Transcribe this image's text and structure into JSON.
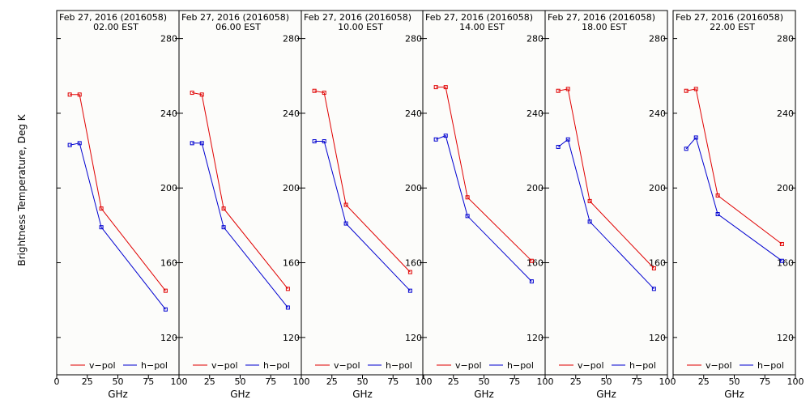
{
  "chart_data": {
    "type": "line",
    "ylabel": "Brightness Temperature, Deg K",
    "xlabel": "GHz",
    "xlim": [
      0,
      100
    ],
    "ylim": [
      100,
      295
    ],
    "x_ticks": [
      "0",
      "25",
      "50",
      "75",
      "100"
    ],
    "y_ticks": [
      "120",
      "160",
      "200",
      "240",
      "280"
    ],
    "grid": false,
    "legend_placement": "bottom",
    "colors": {
      "v-pol": "#e00000",
      "h-pol": "#0000d0"
    },
    "legend": [
      "v−pol",
      "h−pol"
    ],
    "panels": [
      {
        "title_line1": "Feb 27, 2016 (2016058)",
        "title_line2": "02.00 EST",
        "series": [
          {
            "name": "v−pol",
            "x": [
              10.7,
              18.7,
              36.5,
              89.0
            ],
            "y": [
              250,
              250,
              189,
              145
            ]
          },
          {
            "name": "h−pol",
            "x": [
              10.7,
              18.7,
              36.5,
              89.0
            ],
            "y": [
              223,
              224,
              179,
              135
            ]
          }
        ]
      },
      {
        "title_line1": "Feb 27, 2016 (2016058)",
        "title_line2": "06.00 EST",
        "series": [
          {
            "name": "v−pol",
            "x": [
              10.7,
              18.7,
              36.5,
              89.0
            ],
            "y": [
              251,
              250,
              189,
              146
            ]
          },
          {
            "name": "h−pol",
            "x": [
              10.7,
              18.7,
              36.5,
              89.0
            ],
            "y": [
              224,
              224,
              179,
              136
            ]
          }
        ]
      },
      {
        "title_line1": "Feb 27, 2016 (2016058)",
        "title_line2": "10.00 EST",
        "series": [
          {
            "name": "v−pol",
            "x": [
              10.7,
              18.7,
              36.5,
              89.0
            ],
            "y": [
              252,
              251,
              191,
              155
            ]
          },
          {
            "name": "h−pol",
            "x": [
              10.7,
              18.7,
              36.5,
              89.0
            ],
            "y": [
              225,
              225,
              181,
              145
            ]
          }
        ]
      },
      {
        "title_line1": "Feb 27, 2016 (2016058)",
        "title_line2": "14.00 EST",
        "series": [
          {
            "name": "v−pol",
            "x": [
              10.7,
              18.7,
              36.5,
              89.0
            ],
            "y": [
              254,
              254,
              195,
              161
            ]
          },
          {
            "name": "h−pol",
            "x": [
              10.7,
              18.7,
              36.5,
              89.0
            ],
            "y": [
              226,
              228,
              185,
              150
            ]
          }
        ]
      },
      {
        "title_line1": "Feb 27, 2016 (2016058)",
        "title_line2": "18.00 EST",
        "series": [
          {
            "name": "v−pol",
            "x": [
              10.7,
              18.7,
              36.5,
              89.0
            ],
            "y": [
              252,
              253,
              193,
              157
            ]
          },
          {
            "name": "h−pol",
            "x": [
              10.7,
              18.7,
              36.5,
              89.0
            ],
            "y": [
              222,
              226,
              182,
              146
            ]
          }
        ]
      },
      {
        "title_line1": "Feb 27, 2016 (2016058)",
        "title_line2": "22.00 EST",
        "series": [
          {
            "name": "v−pol",
            "x": [
              10.7,
              18.7,
              36.5,
              89.0
            ],
            "y": [
              252,
              253,
              196,
              170
            ]
          },
          {
            "name": "h−pol",
            "x": [
              10.7,
              18.7,
              36.5,
              89.0
            ],
            "y": [
              221,
              227,
              186,
              161
            ]
          }
        ]
      }
    ]
  }
}
